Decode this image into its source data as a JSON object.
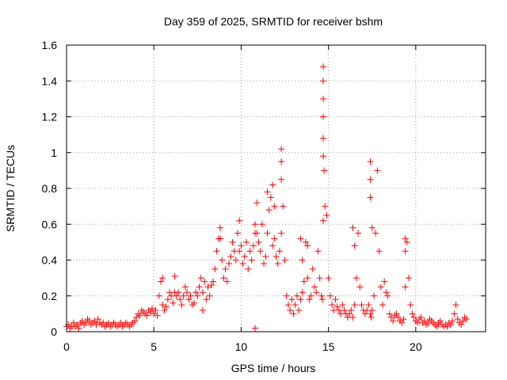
{
  "chart_data": {
    "type": "scatter",
    "title": "Day 359 of 2025, SRMTID for receiver bshm",
    "xlabel": "GPS time / hours",
    "ylabel": "SRMTID / TECUs",
    "xlim": [
      0,
      24
    ],
    "ylim": [
      0,
      1.6
    ],
    "grid": true,
    "marker": "+",
    "color": "#ff0000",
    "xticks": [
      0,
      5,
      10,
      15,
      20
    ],
    "xtick_labels": [
      "0",
      "5",
      "10",
      "15",
      "20"
    ],
    "yticks": [
      0,
      0.2,
      0.4,
      0.6,
      0.8,
      1.0,
      1.2,
      1.4,
      1.6
    ],
    "ytick_labels": [
      "0",
      "0.2",
      "0.4",
      "0.6",
      "0.8",
      "1",
      "1.2",
      "1.4",
      "1.6"
    ],
    "series": [
      {
        "name": "SRMTID",
        "x": [
          0.0,
          0.1,
          0.2,
          0.3,
          0.4,
          0.5,
          0.6,
          0.7,
          0.8,
          0.9,
          1.0,
          1.1,
          1.2,
          1.3,
          1.4,
          1.5,
          1.6,
          1.7,
          1.8,
          1.9,
          2.0,
          2.1,
          2.2,
          2.3,
          2.4,
          2.5,
          2.6,
          2.7,
          2.8,
          2.9,
          3.0,
          3.1,
          3.2,
          3.3,
          3.4,
          3.5,
          3.6,
          3.7,
          3.8,
          3.9,
          4.0,
          4.1,
          4.2,
          4.3,
          4.4,
          4.5,
          4.6,
          4.7,
          4.8,
          4.9,
          5.0,
          5.1,
          5.2,
          5.3,
          5.4,
          5.5,
          5.6,
          5.7,
          5.8,
          5.9,
          6.0,
          6.1,
          6.2,
          6.3,
          6.4,
          6.5,
          6.6,
          6.7,
          6.8,
          6.9,
          7.0,
          7.1,
          7.2,
          7.3,
          7.4,
          7.5,
          7.6,
          7.7,
          7.8,
          7.9,
          8.0,
          8.1,
          8.2,
          8.3,
          8.4,
          8.5,
          8.6,
          8.7,
          8.8,
          8.9,
          9.0,
          9.1,
          9.2,
          9.3,
          9.4,
          9.5,
          9.6,
          9.7,
          9.8,
          9.9,
          10.0,
          10.1,
          10.2,
          10.3,
          10.4,
          10.5,
          10.6,
          10.7,
          10.8,
          10.9,
          11.0,
          11.1,
          11.2,
          11.3,
          11.4,
          11.5,
          11.6,
          11.7,
          11.8,
          11.9,
          12.0,
          12.1,
          12.2,
          12.3,
          12.4,
          12.5,
          12.6,
          12.7,
          12.8,
          12.9,
          13.0,
          13.1,
          13.2,
          13.3,
          13.4,
          13.5,
          13.6,
          13.7,
          13.8,
          13.9,
          14.0,
          14.1,
          14.2,
          14.3,
          14.4,
          14.5,
          14.6,
          14.65,
          14.7,
          14.75,
          14.8,
          14.9,
          15.0,
          15.1,
          15.2,
          15.3,
          15.4,
          15.5,
          15.6,
          15.7,
          15.8,
          15.9,
          16.0,
          16.1,
          16.2,
          16.3,
          16.4,
          16.5,
          16.6,
          16.7,
          16.8,
          16.9,
          17.0,
          17.1,
          17.2,
          17.3,
          17.4,
          17.45,
          17.5,
          17.6,
          17.7,
          17.8,
          17.9,
          18.0,
          18.1,
          18.2,
          18.3,
          18.4,
          18.5,
          18.6,
          18.7,
          18.8,
          18.9,
          19.0,
          19.1,
          19.2,
          19.3,
          19.4,
          19.5,
          19.6,
          19.7,
          19.8,
          19.9,
          20.0,
          20.1,
          20.2,
          20.3,
          20.4,
          20.5,
          20.6,
          20.7,
          20.8,
          20.9,
          21.0,
          21.1,
          21.2,
          21.3,
          21.4,
          21.5,
          21.6,
          21.7,
          21.8,
          21.9,
          22.0,
          22.1,
          22.2,
          22.3,
          22.4,
          22.5,
          22.6,
          22.7,
          22.8,
          22.9,
          14.7,
          14.7,
          14.7,
          14.7,
          14.7,
          14.7,
          17.4,
          17.4,
          17.4,
          17.5,
          12.3,
          12.3,
          12.3,
          11.8,
          11.9,
          11.5,
          10.8,
          10.9,
          9.9,
          8.8,
          19.4,
          19.4,
          16.4,
          16.5,
          13.4,
          13.5,
          13.8,
          6.2,
          5.5,
          10.8,
          7.8
        ],
        "y": [
          0.03,
          0.04,
          0.02,
          0.03,
          0.05,
          0.03,
          0.04,
          0.02,
          0.05,
          0.06,
          0.04,
          0.05,
          0.07,
          0.06,
          0.04,
          0.05,
          0.06,
          0.04,
          0.07,
          0.05,
          0.04,
          0.05,
          0.03,
          0.04,
          0.05,
          0.03,
          0.04,
          0.05,
          0.04,
          0.03,
          0.04,
          0.05,
          0.03,
          0.04,
          0.05,
          0.04,
          0.03,
          0.04,
          0.05,
          0.06,
          0.08,
          0.1,
          0.09,
          0.12,
          0.11,
          0.1,
          0.09,
          0.12,
          0.11,
          0.13,
          0.1,
          0.12,
          0.09,
          0.2,
          0.28,
          0.15,
          0.12,
          0.14,
          0.18,
          0.22,
          0.2,
          0.16,
          0.31,
          0.2,
          0.22,
          0.18,
          0.15,
          0.2,
          0.25,
          0.22,
          0.18,
          0.2,
          0.15,
          0.16,
          0.22,
          0.2,
          0.25,
          0.3,
          0.22,
          0.28,
          0.18,
          0.25,
          0.2,
          0.26,
          0.28,
          0.35,
          0.45,
          0.52,
          0.58,
          0.4,
          0.3,
          0.35,
          0.28,
          0.38,
          0.42,
          0.5,
          0.45,
          0.4,
          0.55,
          0.62,
          0.48,
          0.38,
          0.42,
          0.5,
          0.35,
          0.45,
          0.4,
          0.48,
          0.55,
          0.72,
          0.5,
          0.45,
          0.6,
          0.38,
          0.42,
          0.55,
          0.68,
          0.75,
          0.48,
          0.52,
          0.42,
          0.38,
          0.45,
          0.55,
          0.7,
          0.4,
          0.2,
          0.15,
          0.12,
          0.18,
          0.1,
          0.15,
          0.2,
          0.12,
          0.18,
          0.22,
          0.28,
          0.5,
          0.3,
          0.18,
          0.2,
          0.35,
          0.25,
          0.22,
          0.45,
          0.3,
          0.2,
          0.18,
          0.62,
          0.9,
          0.7,
          0.65,
          0.3,
          0.2,
          0.15,
          0.12,
          0.18,
          0.14,
          0.12,
          0.1,
          0.15,
          0.12,
          0.1,
          0.08,
          0.1,
          0.12,
          0.08,
          0.15,
          0.3,
          0.55,
          0.25,
          0.15,
          0.12,
          0.1,
          0.12,
          0.15,
          0.1,
          0.08,
          0.12,
          0.2,
          0.55,
          0.9,
          0.45,
          0.25,
          0.15,
          0.28,
          0.22,
          0.2,
          0.1,
          0.08,
          0.06,
          0.09,
          0.1,
          0.08,
          0.06,
          0.05,
          0.07,
          0.25,
          0.5,
          0.3,
          0.15,
          0.1,
          0.08,
          0.06,
          0.05,
          0.07,
          0.08,
          0.05,
          0.06,
          0.04,
          0.05,
          0.07,
          0.06,
          0.05,
          0.04,
          0.03,
          0.05,
          0.06,
          0.04,
          0.03,
          0.04,
          0.03,
          0.05,
          0.04,
          0.06,
          0.1,
          0.15,
          0.07,
          0.05,
          0.04,
          0.06,
          0.08,
          0.07,
          1.48,
          1.4,
          1.3,
          1.2,
          1.08,
          0.98,
          0.95,
          0.85,
          0.75,
          0.58,
          1.02,
          0.95,
          0.85,
          0.82,
          0.7,
          0.78,
          0.6,
          0.55,
          0.45,
          0.52,
          0.52,
          0.45,
          0.58,
          0.48,
          0.52,
          0.4,
          0.48,
          0.22,
          0.3,
          0.02,
          0.12
        ]
      }
    ]
  }
}
